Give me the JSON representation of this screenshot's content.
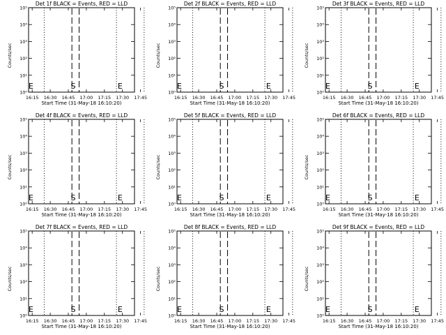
{
  "chart_data": [
    {
      "type": "line",
      "title": "Det 1f BLACK = Events, RED = LLD",
      "xlabel": "Start Time (31-May-18 16:10:20)",
      "ylabel": "Counts/sec",
      "x_ticks": [
        "16:15",
        "16:30",
        "16:45",
        "17:00",
        "17:15",
        "17:30",
        "17:45"
      ],
      "y_ticks": [
        "10⁰",
        "10¹",
        "10²",
        "10³",
        "10⁴",
        "10⁵"
      ],
      "yscale": "log",
      "ylim": [
        1,
        100000
      ],
      "dotted_lines": [
        "16:25",
        "17:25",
        "17:48"
      ],
      "dashed_lines": [
        "16:48",
        "16:54"
      ],
      "markers": [
        {
          "label": "E",
          "time": "16:12"
        },
        {
          "label": "S",
          "time": "16:47"
        },
        {
          "label": "E",
          "time": "17:26"
        }
      ],
      "series": []
    },
    {
      "type": "line",
      "title": "Det 2f BLACK = Events, RED = LLD",
      "xlabel": "Start Time (31-May-18 16:10:20)",
      "ylabel": "Counts/sec",
      "x_ticks": [
        "16:15",
        "16:30",
        "16:45",
        "17:00",
        "17:15",
        "17:30",
        "17:45"
      ],
      "y_ticks": [
        "10⁰",
        "10¹",
        "10²",
        "10³",
        "10⁴",
        "10⁵"
      ],
      "yscale": "log",
      "ylim": [
        1,
        100000
      ],
      "dotted_lines": [
        "16:25",
        "17:25",
        "17:48"
      ],
      "dashed_lines": [
        "16:48",
        "16:54"
      ],
      "markers": [
        {
          "label": "E",
          "time": "16:12"
        },
        {
          "label": "S",
          "time": "16:47"
        },
        {
          "label": "E",
          "time": "17:26"
        }
      ],
      "series": []
    },
    {
      "type": "line",
      "title": "Det 3f BLACK = Events, RED = LLD",
      "xlabel": "Start Time (31-May-18 16:10:20)",
      "ylabel": "Counts/sec",
      "x_ticks": [
        "16:15",
        "16:30",
        "16:45",
        "17:00",
        "17:15",
        "17:30",
        "17:45"
      ],
      "y_ticks": [
        "10⁰",
        "10¹",
        "10²",
        "10³",
        "10⁴",
        "10⁵"
      ],
      "yscale": "log",
      "ylim": [
        1,
        100000
      ],
      "dotted_lines": [
        "16:25",
        "17:25",
        "17:48"
      ],
      "dashed_lines": [
        "16:48",
        "16:54"
      ],
      "markers": [
        {
          "label": "E",
          "time": "16:12"
        },
        {
          "label": "S",
          "time": "16:47"
        },
        {
          "label": "E",
          "time": "17:26"
        }
      ],
      "series": []
    },
    {
      "type": "line",
      "title": "Det 4f BLACK = Events, RED = LLD",
      "xlabel": "Start Time (31-May-18 16:10:20)",
      "ylabel": "Counts/sec",
      "x_ticks": [
        "16:15",
        "16:30",
        "16:45",
        "17:00",
        "17:15",
        "17:30",
        "17:45"
      ],
      "y_ticks": [
        "10⁰",
        "10¹",
        "10²",
        "10³",
        "10⁴",
        "10⁵"
      ],
      "yscale": "log",
      "ylim": [
        1,
        100000
      ],
      "dotted_lines": [
        "16:25",
        "17:25",
        "17:48"
      ],
      "dashed_lines": [
        "16:48",
        "16:54"
      ],
      "markers": [
        {
          "label": "E",
          "time": "16:12"
        },
        {
          "label": "S",
          "time": "16:47"
        },
        {
          "label": "E",
          "time": "17:26"
        }
      ],
      "series": []
    },
    {
      "type": "line",
      "title": "Det 5f BLACK = Events, RED = LLD",
      "xlabel": "Start Time (31-May-18 16:10:20)",
      "ylabel": "Counts/sec",
      "x_ticks": [
        "16:15",
        "16:30",
        "16:45",
        "17:00",
        "17:15",
        "17:30",
        "17:45"
      ],
      "y_ticks": [
        "10⁰",
        "10¹",
        "10²",
        "10³",
        "10⁴",
        "10⁵"
      ],
      "yscale": "log",
      "ylim": [
        1,
        100000
      ],
      "dotted_lines": [
        "16:25",
        "17:25",
        "17:48"
      ],
      "dashed_lines": [
        "16:48",
        "16:54"
      ],
      "markers": [
        {
          "label": "E",
          "time": "16:12"
        },
        {
          "label": "S",
          "time": "16:47"
        },
        {
          "label": "E",
          "time": "17:26"
        }
      ],
      "series": []
    },
    {
      "type": "line",
      "title": "Det 6f BLACK = Events, RED = LLD",
      "xlabel": "Start Time (31-May-18 16:10:20)",
      "ylabel": "Counts/sec",
      "x_ticks": [
        "16:15",
        "16:30",
        "16:45",
        "17:00",
        "17:15",
        "17:30",
        "17:45"
      ],
      "y_ticks": [
        "10⁰",
        "10¹",
        "10²",
        "10³",
        "10⁴",
        "10⁵"
      ],
      "yscale": "log",
      "ylim": [
        1,
        100000
      ],
      "dotted_lines": [
        "16:25",
        "17:25",
        "17:48"
      ],
      "dashed_lines": [
        "16:48",
        "16:54"
      ],
      "markers": [
        {
          "label": "E",
          "time": "16:12"
        },
        {
          "label": "S",
          "time": "16:47"
        },
        {
          "label": "E",
          "time": "17:26"
        }
      ],
      "series": []
    },
    {
      "type": "line",
      "title": "Det 7f BLACK = Events, RED = LLD",
      "xlabel": "Start Time (31-May-18 16:10:20)",
      "ylabel": "Counts/sec",
      "x_ticks": [
        "16:15",
        "16:30",
        "16:45",
        "17:00",
        "17:15",
        "17:30",
        "17:45"
      ],
      "y_ticks": [
        "10⁰",
        "10¹",
        "10²",
        "10³",
        "10⁴",
        "10⁵"
      ],
      "yscale": "log",
      "ylim": [
        1,
        100000
      ],
      "dotted_lines": [
        "16:25",
        "17:25",
        "17:48"
      ],
      "dashed_lines": [
        "16:48",
        "16:54"
      ],
      "markers": [
        {
          "label": "E",
          "time": "16:12"
        },
        {
          "label": "S",
          "time": "16:47"
        },
        {
          "label": "E",
          "time": "17:26"
        }
      ],
      "series": []
    },
    {
      "type": "line",
      "title": "Det 8f BLACK = Events, RED = LLD",
      "xlabel": "Start Time (31-May-18 16:10:20)",
      "ylabel": "Counts/sec",
      "x_ticks": [
        "16:15",
        "16:30",
        "16:45",
        "17:00",
        "17:15",
        "17:30",
        "17:45"
      ],
      "y_ticks": [
        "10⁰",
        "10¹",
        "10²",
        "10³",
        "10⁴",
        "10⁵"
      ],
      "yscale": "log",
      "ylim": [
        1,
        100000
      ],
      "dotted_lines": [
        "16:25",
        "17:25",
        "17:48"
      ],
      "dashed_lines": [
        "16:48",
        "16:54"
      ],
      "markers": [
        {
          "label": "E",
          "time": "16:12"
        },
        {
          "label": "S",
          "time": "16:47"
        },
        {
          "label": "E",
          "time": "17:26"
        }
      ],
      "series": []
    },
    {
      "type": "line",
      "title": "Det 9f BLACK = Events, RED = LLD",
      "xlabel": "Start Time (31-May-18 16:10:20)",
      "ylabel": "Counts/sec",
      "x_ticks": [
        "16:15",
        "16:30",
        "16:45",
        "17:00",
        "17:15",
        "17:30",
        "17:45"
      ],
      "y_ticks": [
        "10⁰",
        "10¹",
        "10²",
        "10³",
        "10⁴",
        "10⁵"
      ],
      "yscale": "log",
      "ylim": [
        1,
        100000
      ],
      "dotted_lines": [
        "16:25",
        "17:25",
        "17:48"
      ],
      "dashed_lines": [
        "16:48",
        "16:54"
      ],
      "markers": [
        {
          "label": "E",
          "time": "16:12"
        },
        {
          "label": "S",
          "time": "16:47"
        },
        {
          "label": "E",
          "time": "17:26"
        }
      ],
      "series": []
    }
  ],
  "colors": {
    "background": "#ffffff",
    "foreground": "#000000",
    "events": "#000000",
    "lld": "#ff0000"
  }
}
